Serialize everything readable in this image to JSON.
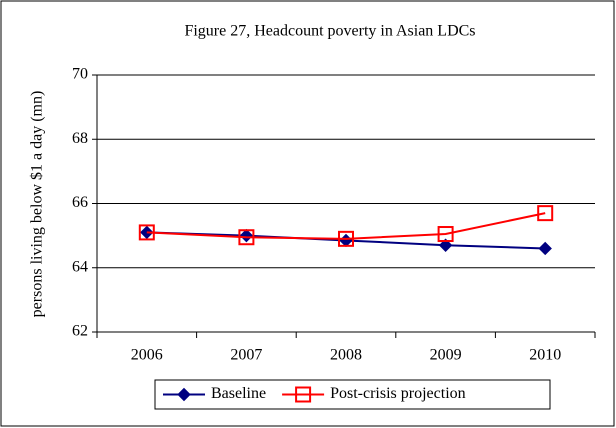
{
  "chart_data": {
    "type": "line",
    "title": "Figure 27, Headcount poverty in Asian LDCs",
    "y_label": "persons living below $1 a day (mn)",
    "categories": [
      "2006",
      "2007",
      "2008",
      "2009",
      "2010"
    ],
    "series": [
      {
        "name": "Baseline",
        "color": "#000080",
        "marker": "diamond",
        "values": [
          65.1,
          65.0,
          64.85,
          64.7,
          64.6
        ]
      },
      {
        "name": "Post-crisis projection",
        "color": "#ff0000",
        "marker": "square",
        "values": [
          65.1,
          64.95,
          64.9,
          65.05,
          65.7
        ]
      }
    ],
    "ylim": [
      62,
      70
    ],
    "yticks": [
      62,
      64,
      66,
      68,
      70
    ],
    "grid": true,
    "legend": "bottom"
  }
}
